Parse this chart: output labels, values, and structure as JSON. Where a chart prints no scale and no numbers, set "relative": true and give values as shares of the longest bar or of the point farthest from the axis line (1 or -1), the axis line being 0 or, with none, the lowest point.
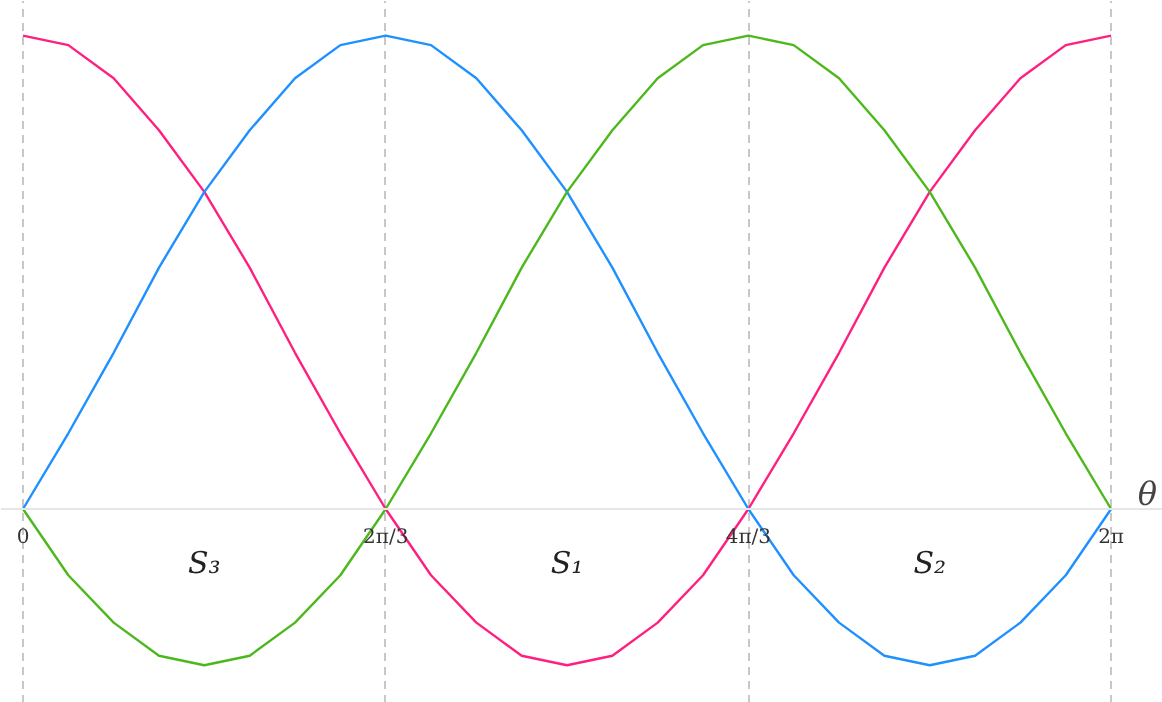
{
  "chart_data": {
    "type": "line",
    "relative": true,
    "xlabel": "θ",
    "grid": "x",
    "xlim": [
      -0.127,
      6.583
    ],
    "xticks": [
      0,
      {
        "value": 2.0944,
        "label": "2π/3"
      },
      {
        "value": 4.1888,
        "label": "4π/3"
      },
      {
        "value": 6.2832,
        "label": "2π"
      }
    ],
    "x": [
      0,
      0.2618,
      0.5236,
      0.7854,
      1.0472,
      1.309,
      1.5708,
      1.8326,
      2.0944,
      2.3562,
      2.618,
      2.8798,
      3.1416,
      3.4034,
      3.6652,
      3.927,
      4.1888,
      4.4506,
      4.7124,
      4.9742,
      5.236,
      5.4978,
      5.7596,
      6.0214,
      6.2832
    ],
    "series": [
      {
        "color": "#ff1f7f",
        "values": [
          1,
          0.98,
          0.91,
          0.8,
          0.67,
          0.51,
          0.33,
          0.16,
          0,
          -0.14,
          -0.24,
          -0.31,
          -0.33,
          -0.31,
          -0.24,
          -0.14,
          0,
          0.16,
          0.33,
          0.51,
          0.67,
          0.8,
          0.91,
          0.98,
          1
        ]
      },
      {
        "color": "#1e90ff",
        "values": [
          0,
          0.16,
          0.33,
          0.51,
          0.67,
          0.8,
          0.91,
          0.98,
          1,
          0.98,
          0.91,
          0.8,
          0.67,
          0.51,
          0.33,
          0.16,
          0,
          -0.14,
          -0.24,
          -0.31,
          -0.33,
          -0.31,
          -0.24,
          -0.14,
          0
        ]
      },
      {
        "color": "#4cb81c",
        "values": [
          0,
          -0.14,
          -0.24,
          -0.31,
          -0.33,
          -0.31,
          -0.24,
          -0.14,
          0,
          0.16,
          0.33,
          0.51,
          0.67,
          0.8,
          0.91,
          0.98,
          1,
          0.98,
          0.91,
          0.8,
          0.67,
          0.51,
          0.33,
          0.16,
          0
        ]
      }
    ],
    "annotations": [
      "S₃",
      "S₁",
      "S₂"
    ]
  }
}
